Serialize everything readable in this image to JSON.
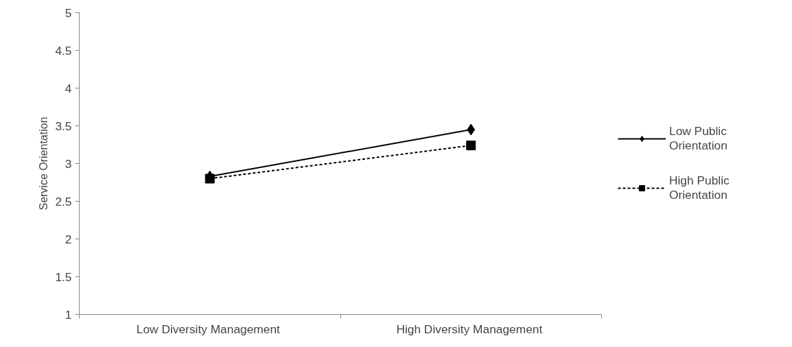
{
  "chart_data": {
    "type": "line",
    "ylabel": "Service Orientation",
    "categories": [
      "Low Diversity  Management",
      "High Diversity  Management"
    ],
    "series": [
      {
        "name": "Low Public Orientation",
        "color": "#000000",
        "values": [
          2.83,
          3.45
        ],
        "marker": "diamond",
        "line_style": "solid"
      },
      {
        "name": "High Public Orientation",
        "color": "#000000",
        "values": [
          2.8,
          3.24
        ],
        "marker": "square",
        "line_style": "dashed"
      }
    ],
    "ylim": [
      1,
      5
    ],
    "yticks": [
      1,
      1.5,
      2,
      2.5,
      3,
      3.5,
      4,
      4.5,
      5
    ],
    "grid": false,
    "legend": "right"
  }
}
